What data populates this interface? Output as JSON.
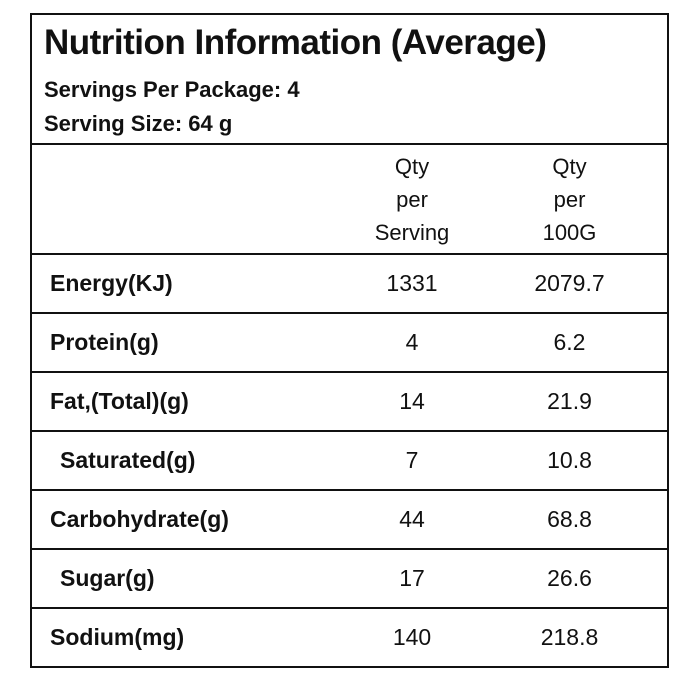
{
  "label": {
    "title": "Nutrition Information (Average)",
    "servings_per_package": "Servings Per Package: 4",
    "serving_size": "Serving Size: 64 g",
    "columns": {
      "per_serving": [
        "Qty",
        "per",
        "Serving"
      ],
      "per_100g": [
        "Qty",
        "per",
        "100G"
      ]
    },
    "rows": [
      {
        "name": "Energy(KJ)",
        "per_serving": "1331",
        "per_100g": "2079.7"
      },
      {
        "name": "Protein(g)",
        "per_serving": "4",
        "per_100g": "6.2"
      },
      {
        "name": "Fat,(Total)(g)",
        "per_serving": "14",
        "per_100g": "21.9"
      },
      {
        "name": "Saturated(g)",
        "per_serving": "7",
        "per_100g": "10.8"
      },
      {
        "name": "Carbohydrate(g)",
        "per_serving": "44",
        "per_100g": "68.8"
      },
      {
        "name": "Sugar(g)",
        "per_serving": "17",
        "per_100g": "26.6"
      },
      {
        "name": "Sodium(mg)",
        "per_serving": "140",
        "per_100g": "218.8"
      }
    ]
  }
}
